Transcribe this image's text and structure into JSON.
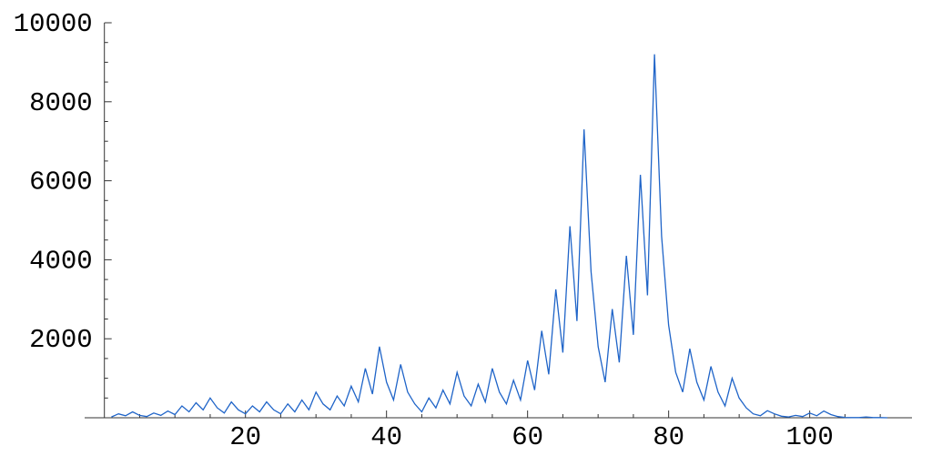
{
  "chart_data": {
    "type": "line",
    "title": "",
    "xlabel": "",
    "ylabel": "",
    "xlim": [
      -2.8,
      114.5
    ],
    "ylim": [
      0,
      10000
    ],
    "x_ticks": [
      20,
      40,
      60,
      80,
      100
    ],
    "y_ticks": [
      2000,
      4000,
      6000,
      8000,
      10000
    ],
    "x_tick_labels": [
      "20",
      "40",
      "60",
      "80",
      "100"
    ],
    "y_tick_labels": [
      "2000",
      "4000",
      "6000",
      "8000",
      "10000"
    ],
    "grid": false,
    "line_color": "#1f64c8",
    "series": [
      {
        "x": [
          1,
          2,
          3,
          4,
          5,
          6,
          7,
          8,
          9,
          10,
          11,
          12,
          13,
          14,
          15,
          16,
          17,
          18,
          19,
          20,
          21,
          22,
          23,
          24,
          25,
          26,
          27,
          28,
          29,
          30,
          31,
          32,
          33,
          34,
          35,
          36,
          37,
          38,
          39,
          40,
          41,
          42,
          43,
          44,
          45,
          46,
          47,
          48,
          49,
          50,
          51,
          52,
          53,
          54,
          55,
          56,
          57,
          58,
          59,
          60,
          61,
          62,
          63,
          64,
          65,
          66,
          67,
          68,
          69,
          70,
          71,
          72,
          73,
          74,
          75,
          76,
          77,
          78,
          79,
          80,
          81,
          82,
          83,
          84,
          85,
          86,
          87,
          88,
          89,
          90,
          91,
          92,
          93,
          94,
          95,
          96,
          97,
          98,
          99,
          100,
          101,
          102,
          103,
          104,
          105,
          106,
          107,
          108,
          109,
          110,
          111
        ],
        "y": [
          20,
          100,
          50,
          150,
          60,
          30,
          120,
          60,
          170,
          80,
          300,
          150,
          380,
          200,
          500,
          250,
          120,
          400,
          200,
          100,
          300,
          150,
          400,
          200,
          100,
          350,
          150,
          450,
          200,
          650,
          350,
          200,
          550,
          300,
          800,
          400,
          1250,
          600,
          1800,
          900,
          450,
          1350,
          650,
          350,
          150,
          500,
          250,
          700,
          350,
          1150,
          550,
          300,
          850,
          400,
          1250,
          650,
          350,
          950,
          450,
          1450,
          700,
          2200,
          1100,
          3250,
          1650,
          4850,
          2450,
          7300,
          3700,
          1800,
          900,
          2750,
          1400,
          4100,
          2100,
          6150,
          3100,
          9200,
          4600,
          2350,
          1150,
          650,
          1750,
          900,
          450,
          1300,
          650,
          300,
          1000,
          500,
          250,
          100,
          50,
          180,
          100,
          40,
          20,
          60,
          30,
          120,
          50,
          170,
          80,
          30,
          10,
          5,
          5,
          20,
          5,
          5,
          0
        ]
      }
    ]
  }
}
